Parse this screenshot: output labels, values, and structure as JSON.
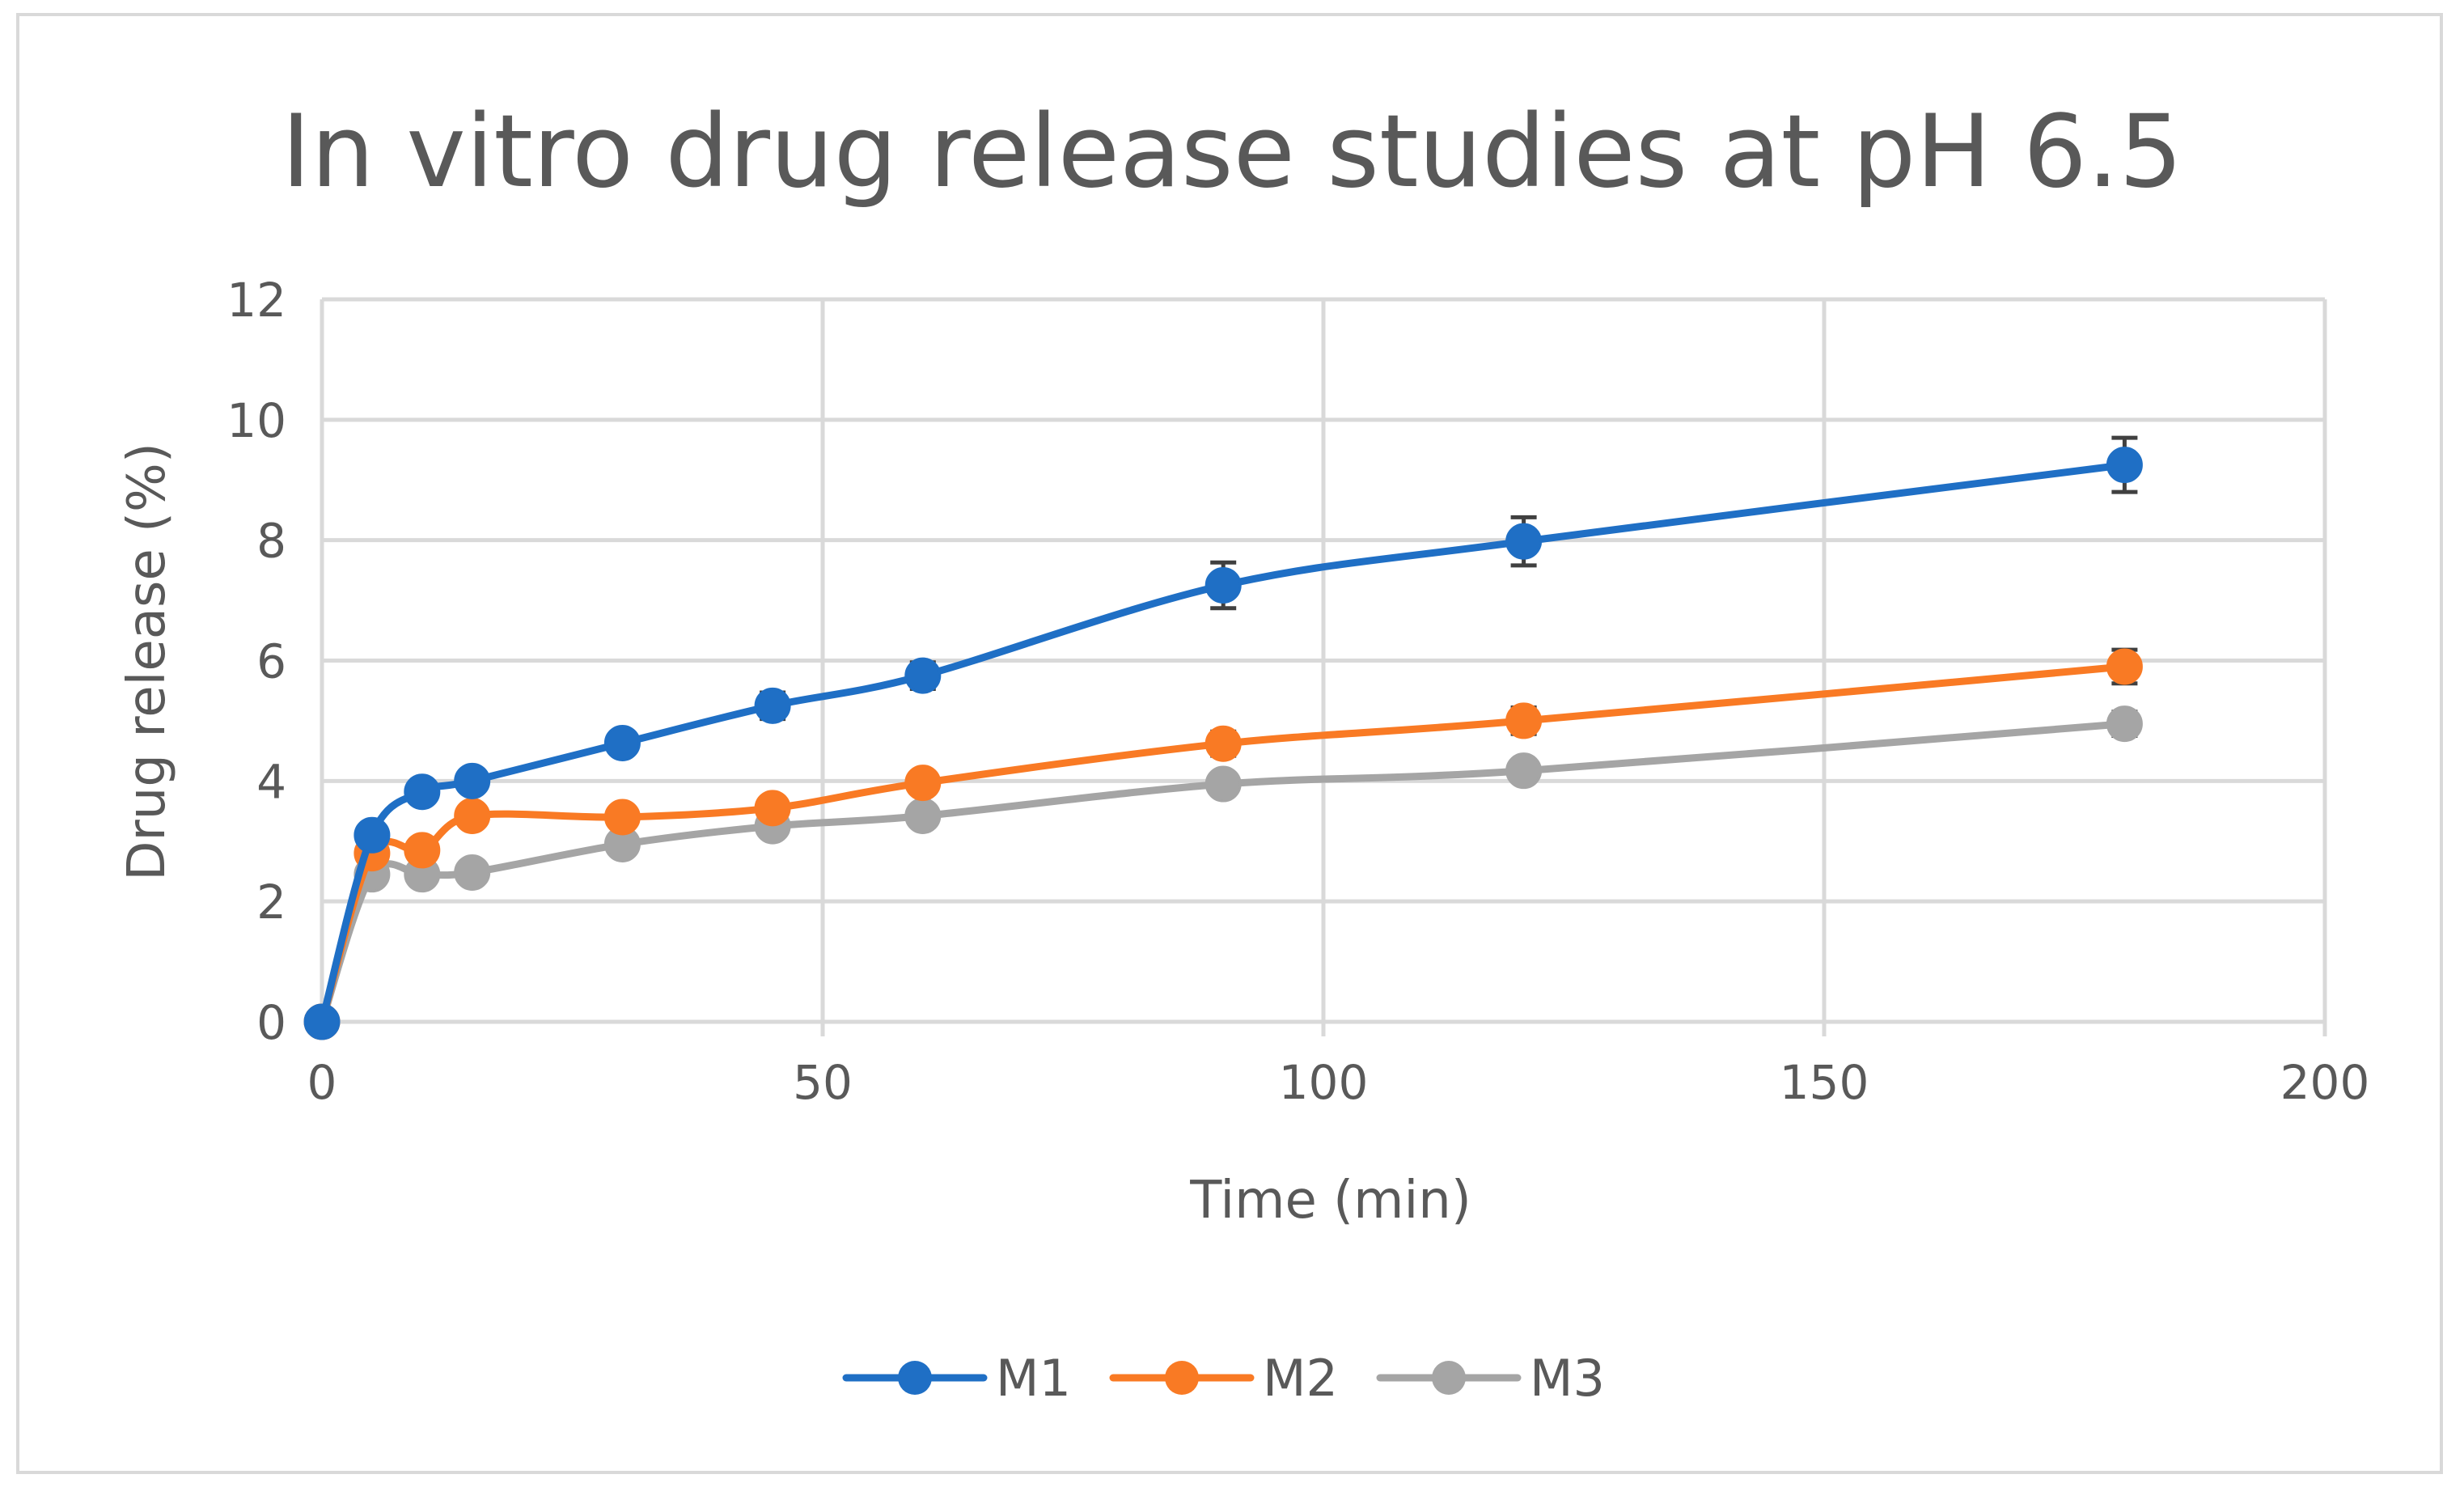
{
  "chart_data": {
    "type": "line",
    "title": "In vitro drug release studies at pH 6.5",
    "xlabel": "Time (min)",
    "ylabel": "Drug release (%)",
    "xlim": [
      0,
      200
    ],
    "ylim": [
      0,
      12
    ],
    "x_ticks": [
      0,
      50,
      100,
      150,
      200
    ],
    "y_ticks": [
      0,
      2,
      4,
      6,
      8,
      10,
      12
    ],
    "x_tick_labels": [
      "0",
      "50",
      "100",
      "150",
      "200"
    ],
    "y_tick_labels": [
      "0",
      "2",
      "4",
      "6",
      "8",
      "10",
      "12"
    ],
    "grid": true,
    "legend_position": "bottom",
    "smooth": true,
    "x": [
      0,
      5,
      10,
      15,
      30,
      45,
      60,
      90,
      120,
      180
    ],
    "series": [
      {
        "name": "M1",
        "color": "#1f6fc5",
        "values": [
          0,
          3.1,
          3.82,
          4.0,
          4.63,
          5.25,
          5.75,
          7.25,
          7.98,
          9.25
        ],
        "errors": [
          0,
          0.1,
          0.1,
          0.1,
          0.15,
          0.22,
          0.22,
          0.38,
          0.4,
          0.45
        ]
      },
      {
        "name": "M2",
        "color": "#f97a24",
        "values": [
          0,
          2.8,
          2.85,
          3.42,
          3.4,
          3.55,
          3.97,
          4.62,
          5.0,
          5.9
        ],
        "errors": [
          0,
          0.1,
          0.1,
          0.12,
          0.12,
          0.14,
          0.15,
          0.2,
          0.22,
          0.28
        ]
      },
      {
        "name": "M3",
        "color": "#a5a5a5",
        "values": [
          0,
          2.45,
          2.45,
          2.48,
          2.95,
          3.25,
          3.42,
          3.95,
          4.17,
          4.95
        ],
        "errors": [
          0,
          0.08,
          0.08,
          0.08,
          0.1,
          0.1,
          0.1,
          0.12,
          0.15,
          0.2
        ]
      }
    ]
  }
}
